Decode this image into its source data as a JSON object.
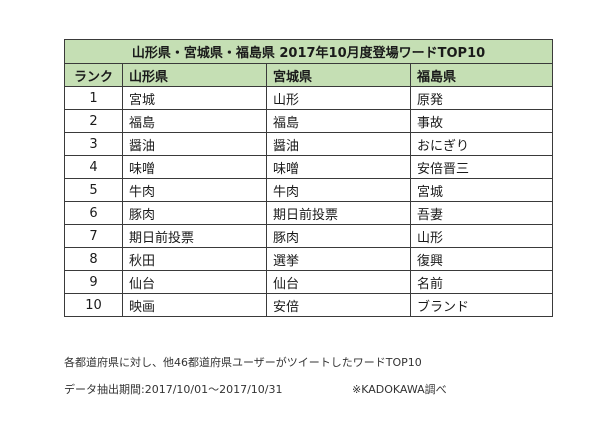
{
  "table": {
    "title": "山形県・宮城県・福島県 2017年10月度登場ワードTOP10",
    "headers": [
      "ランク",
      "山形県",
      "宮城県",
      "福島県"
    ],
    "rows": [
      {
        "rank": "1",
        "yamagata": "宮城",
        "miyagi": "山形",
        "fukushima": "原発"
      },
      {
        "rank": "2",
        "yamagata": "福島",
        "miyagi": "福島",
        "fukushima": "事故"
      },
      {
        "rank": "3",
        "yamagata": "醤油",
        "miyagi": "醤油",
        "fukushima": "おにぎり"
      },
      {
        "rank": "4",
        "yamagata": "味噌",
        "miyagi": "味噌",
        "fukushima": "安倍晋三"
      },
      {
        "rank": "5",
        "yamagata": "牛肉",
        "miyagi": "牛肉",
        "fukushima": "宮城"
      },
      {
        "rank": "6",
        "yamagata": "豚肉",
        "miyagi": "期日前投票",
        "fukushima": "吾妻"
      },
      {
        "rank": "7",
        "yamagata": "期日前投票",
        "miyagi": "豚肉",
        "fukushima": "山形"
      },
      {
        "rank": "8",
        "yamagata": "秋田",
        "miyagi": "選挙",
        "fukushima": "復興"
      },
      {
        "rank": "9",
        "yamagata": "仙台",
        "miyagi": "仙台",
        "fukushima": "名前"
      },
      {
        "rank": "10",
        "yamagata": "映画",
        "miyagi": "安倍",
        "fukushima": "ブランド"
      }
    ]
  },
  "notes": {
    "line1": "各都道府県に対し、他46都道府県ユーザーがツイートしたワードTOP10",
    "line2": "データ抽出期間:2017/10/01～2017/10/31",
    "source": "※KADOKAWA調べ"
  },
  "colors": {
    "header_bg": "#c5dfb4",
    "border": "#3a3a3a"
  }
}
